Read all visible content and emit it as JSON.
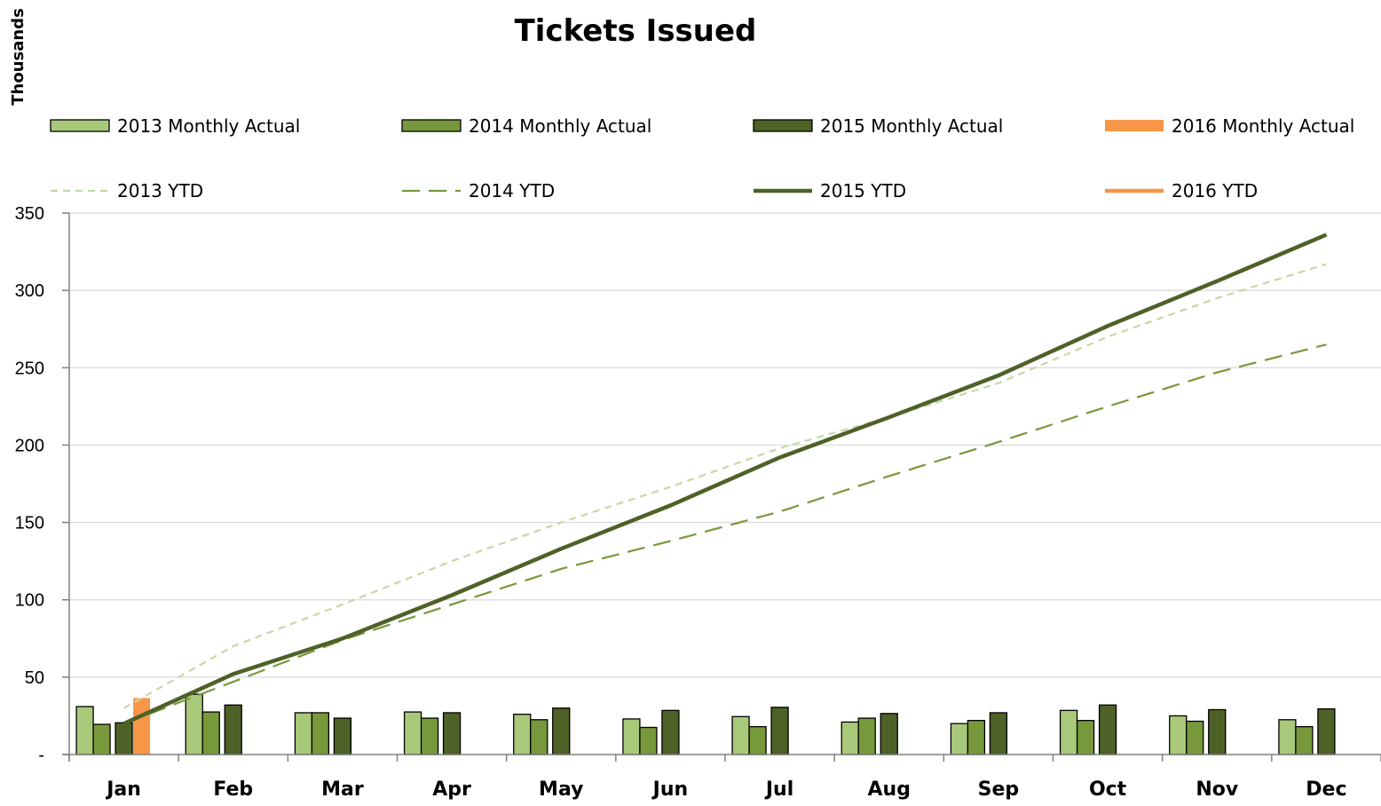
{
  "chart_data": {
    "type": "bar",
    "title": "Tickets Issued",
    "unit_label": "Thousands",
    "xlabel": "",
    "ylabel": "",
    "ylim": [
      0,
      350
    ],
    "yticks": [
      0,
      50,
      100,
      150,
      200,
      250,
      300,
      350
    ],
    "ytick_labels": [
      "-",
      "50",
      "100",
      "150",
      "200",
      "250",
      "300",
      "350"
    ],
    "grid": "horizontal",
    "legend_position": "top",
    "categories": [
      "Jan",
      "Feb",
      "Mar",
      "Apr",
      "May",
      "Jun",
      "Jul",
      "Aug",
      "Sep",
      "Oct",
      "Nov",
      "Dec"
    ],
    "bar_series": [
      {
        "name": "2013 Monthly Actual",
        "color": "#a9c97a",
        "values": [
          31,
          39,
          27,
          27.5,
          26,
          23,
          24.5,
          21,
          20,
          28.5,
          25,
          22.5
        ]
      },
      {
        "name": "2014 Monthly Actual",
        "color": "#77993b",
        "values": [
          19.5,
          27.5,
          27,
          23.5,
          22.5,
          17.5,
          18,
          23.5,
          22,
          22,
          21.5,
          18
        ]
      },
      {
        "name": "2015 Monthly Actual",
        "color": "#4e6127",
        "values": [
          20.5,
          32,
          23.5,
          27,
          30,
          28.5,
          30.5,
          26.5,
          27,
          32,
          29,
          29.5
        ]
      },
      {
        "name": "2016 Monthly Actual",
        "color": "#f79646",
        "values": [
          36.5,
          null,
          null,
          null,
          null,
          null,
          null,
          null,
          null,
          null,
          null,
          null
        ]
      }
    ],
    "line_series": [
      {
        "name": "2013 YTD",
        "color": "#c4d9a6",
        "dash": "short",
        "values": [
          30,
          70,
          97,
          125,
          150,
          173,
          198,
          218,
          240,
          270,
          295,
          317
        ]
      },
      {
        "name": "2014 YTD",
        "color": "#77993b",
        "dash": "long",
        "values": [
          20,
          47,
          74,
          97,
          120,
          138,
          157,
          180,
          202,
          225,
          247,
          265
        ]
      },
      {
        "name": "2015 YTD",
        "color": "#4e6127",
        "dash": "solid",
        "values": [
          20,
          52,
          75,
          103,
          133,
          161,
          192,
          218,
          245,
          277,
          306,
          336
        ]
      },
      {
        "name": "2016 YTD",
        "color": "#f79646",
        "dash": "solid",
        "values": [
          36.5,
          null,
          null,
          null,
          null,
          null,
          null,
          null,
          null,
          null,
          null,
          null
        ]
      }
    ]
  }
}
